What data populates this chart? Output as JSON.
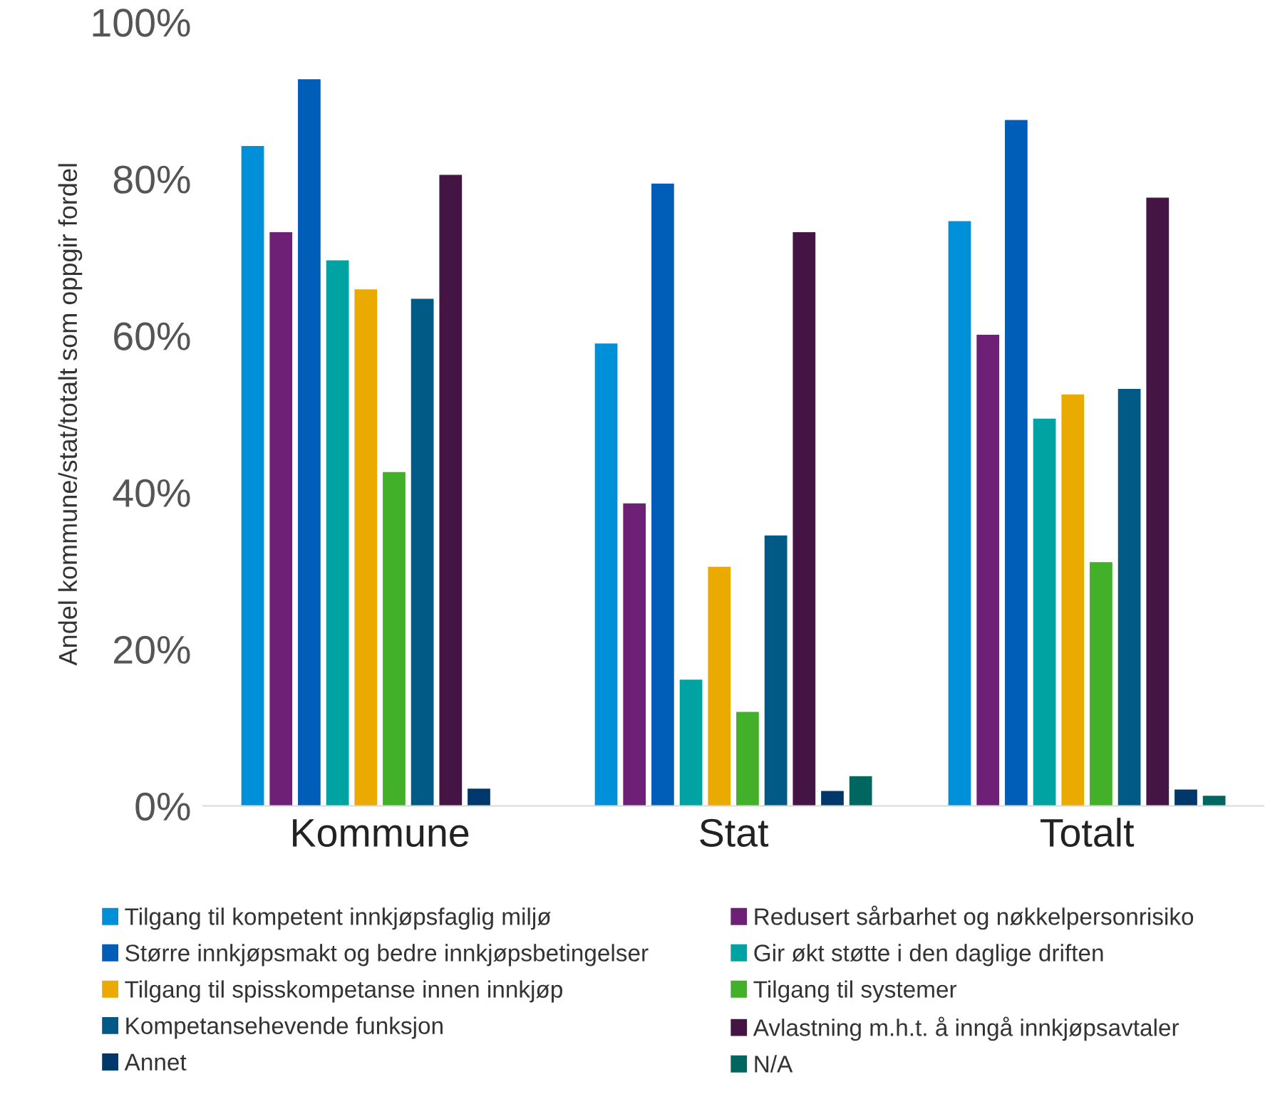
{
  "chart_data": {
    "type": "bar",
    "ylabel": "Andel kommune/stat/totalt som oppgir fordel",
    "categories": [
      "Kommune",
      "Stat",
      "Totalt"
    ],
    "ylim": [
      0,
      100
    ],
    "yticks": [
      {
        "value": 0,
        "label": "0%"
      },
      {
        "value": 20,
        "label": "20%"
      },
      {
        "value": 40,
        "label": "40%"
      },
      {
        "value": 60,
        "label": "60%"
      },
      {
        "value": 80,
        "label": "80%"
      },
      {
        "value": 100,
        "label": "100%"
      }
    ],
    "grid": false,
    "legend": "bottom",
    "series": [
      {
        "name": "Tilgang til kompetent innkjøpsfaglig miljø",
        "color": "#0090d9",
        "values": [
          84.2,
          59.0,
          74.6
        ]
      },
      {
        "name": "Redusert sårbarhet og nøkkelpersonrisiko",
        "color": "#6e2076",
        "values": [
          73.2,
          38.6,
          60.1
        ]
      },
      {
        "name": "Større innkjøpsmakt og bedre innkjøpsbetingelser",
        "color": "#005eb8",
        "values": [
          92.7,
          79.4,
          87.5
        ]
      },
      {
        "name": "Gir økt støtte i den daglige driften",
        "color": "#00a3a1",
        "values": [
          69.6,
          16.1,
          49.4
        ]
      },
      {
        "name": "Tilgang til spisskompetanse innen innkjøp",
        "color": "#eaaa00",
        "values": [
          65.9,
          30.5,
          52.5
        ]
      },
      {
        "name": "Tilgang til systemer",
        "color": "#43b02a",
        "values": [
          42.6,
          12.0,
          31.1
        ]
      },
      {
        "name": "Kompetansehevende funksjon",
        "color": "#005a85",
        "values": [
          64.7,
          34.5,
          53.2
        ]
      },
      {
        "name": "Avlastning m.h.t. å inngå innkjøpsavtaler",
        "color": "#441444",
        "values": [
          80.5,
          73.2,
          77.6
        ]
      },
      {
        "name": "Annet",
        "color": "#00386b",
        "values": [
          2.2,
          1.9,
          2.1
        ]
      },
      {
        "name": "N/A",
        "color": "#00665f",
        "values": [
          null,
          3.8,
          1.3
        ]
      }
    ]
  }
}
